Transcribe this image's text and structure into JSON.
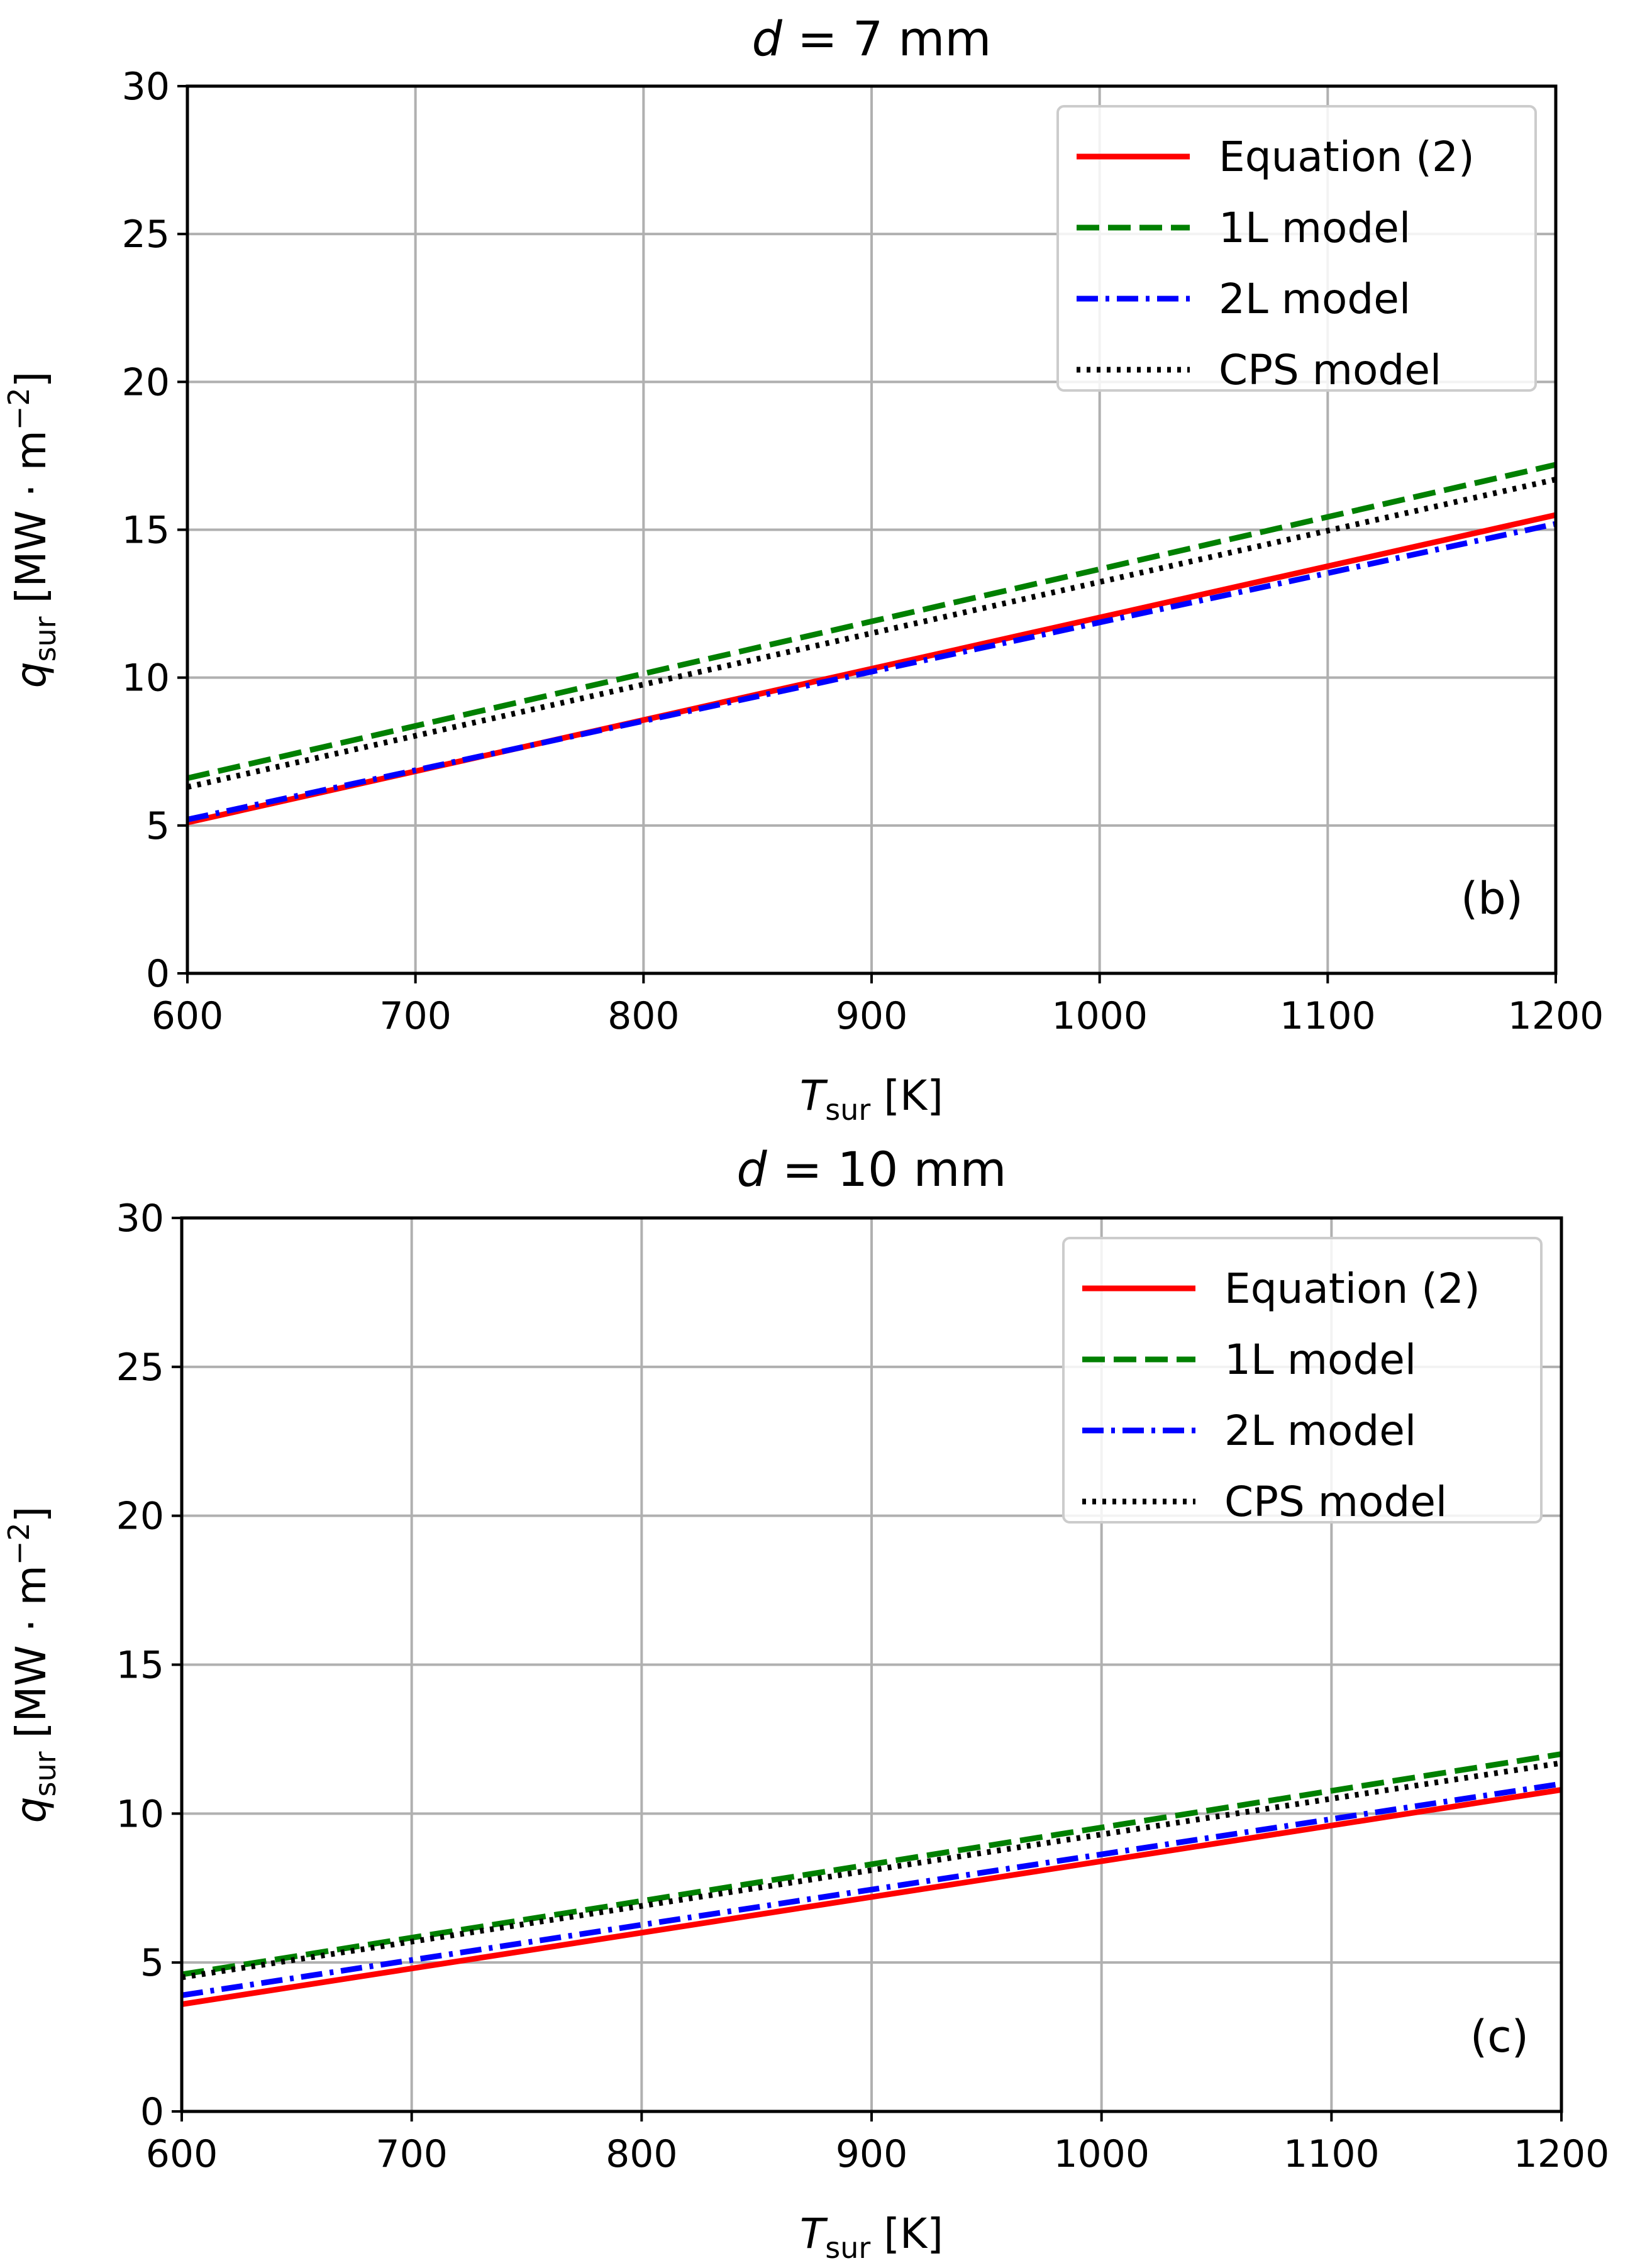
{
  "figure": {
    "background": "#ffffff",
    "grid_color": "#b0b0b0"
  },
  "chart_data": [
    {
      "type": "line",
      "title": {
        "var": "d",
        "rest": " = 7 mm"
      },
      "panel_label": "(b)",
      "xlabel": {
        "var": "T",
        "sub": "sur",
        "unit": " [K]"
      },
      "ylabel": {
        "var": "q",
        "sub": "sur",
        "unit_pre": " [MW · m",
        "unit_exp": "−2",
        "unit_post": "]"
      },
      "xlim": [
        600,
        1200
      ],
      "ylim": [
        0,
        30
      ],
      "xticks": [
        "600",
        "700",
        "800",
        "900",
        "1000",
        "1100",
        "1200"
      ],
      "yticks": [
        "0",
        "5",
        "10",
        "15",
        "20",
        "25",
        "30"
      ],
      "grid": true,
      "legend_position": "top-right",
      "series": [
        {
          "name": "Equation (2)",
          "color": "#ff0000",
          "dash": "solid",
          "x": [
            600,
            1200
          ],
          "y": [
            5.1,
            15.5
          ]
        },
        {
          "name": "1L model",
          "color": "#008000",
          "dash": "dashed",
          "x": [
            600,
            1200
          ],
          "y": [
            6.6,
            17.2
          ]
        },
        {
          "name": "2L model",
          "color": "#0000ff",
          "dash": "dashdot",
          "x": [
            600,
            1200
          ],
          "y": [
            5.2,
            15.2
          ]
        },
        {
          "name": "CPS model",
          "color": "#000000",
          "dash": "dotted",
          "x": [
            600,
            1200
          ],
          "y": [
            6.3,
            16.7
          ]
        }
      ]
    },
    {
      "type": "line",
      "title": {
        "var": "d",
        "rest": " = 10 mm"
      },
      "panel_label": "(c)",
      "xlabel": {
        "var": "T",
        "sub": "sur",
        "unit": " [K]"
      },
      "ylabel": {
        "var": "q",
        "sub": "sur",
        "unit_pre": " [MW · m",
        "unit_exp": "−2",
        "unit_post": "]"
      },
      "xlim": [
        600,
        1200
      ],
      "ylim": [
        0,
        30
      ],
      "xticks": [
        "600",
        "700",
        "800",
        "900",
        "1000",
        "1100",
        "1200"
      ],
      "yticks": [
        "0",
        "5",
        "10",
        "15",
        "20",
        "25",
        "30"
      ],
      "grid": true,
      "legend_position": "top-right",
      "series": [
        {
          "name": "Equation (2)",
          "color": "#ff0000",
          "dash": "solid",
          "x": [
            600,
            1200
          ],
          "y": [
            3.6,
            10.8
          ]
        },
        {
          "name": "1L model",
          "color": "#008000",
          "dash": "dashed",
          "x": [
            600,
            1200
          ],
          "y": [
            4.6,
            12.0
          ]
        },
        {
          "name": "2L model",
          "color": "#0000ff",
          "dash": "dashdot",
          "x": [
            600,
            1200
          ],
          "y": [
            3.9,
            11.0
          ]
        },
        {
          "name": "CPS model",
          "color": "#000000",
          "dash": "dotted",
          "x": [
            600,
            1200
          ],
          "y": [
            4.5,
            11.7
          ]
        }
      ]
    }
  ]
}
